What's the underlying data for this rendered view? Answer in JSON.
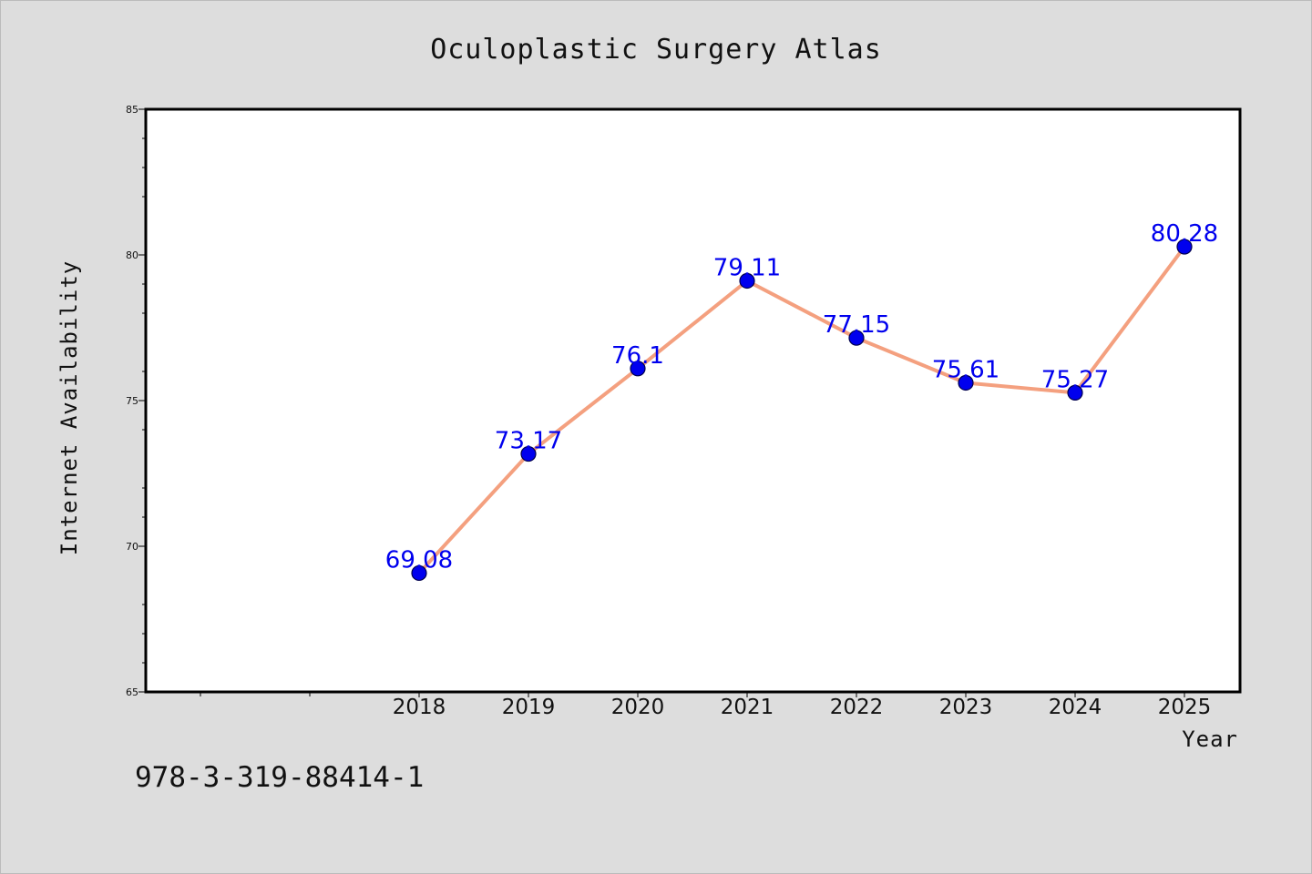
{
  "chart_data": {
    "type": "line",
    "title": "Oculoplastic Surgery Atlas",
    "xlabel": "Year",
    "ylabel": "Internet Availability",
    "categories": [
      "2018",
      "2019",
      "2020",
      "2021",
      "2022",
      "2023",
      "2024",
      "2025"
    ],
    "series": [
      {
        "values": [
          69.08,
          73.17,
          76.1,
          79.11,
          77.15,
          75.61,
          75.27,
          80.28
        ],
        "labels": [
          "69.08",
          "73.17",
          "76.1",
          "79.11",
          "77.15",
          "75.61",
          "75.27",
          "80.28"
        ]
      }
    ],
    "ylim": [
      65,
      85
    ],
    "yticks": [
      65,
      70,
      75,
      80,
      85
    ],
    "ytick_labels": [
      "65",
      "70",
      "75",
      "80",
      "85"
    ],
    "grid": false,
    "legend": "none",
    "colors": {
      "line": "#f4a07f",
      "marker": "#0000ee",
      "marker_edge": "#00004d",
      "data_label": "#0000ee",
      "page_background": "#dddddd",
      "plot_background": "#ffffff"
    }
  },
  "footer": {
    "isbn": "978-3-319-88414-1"
  }
}
